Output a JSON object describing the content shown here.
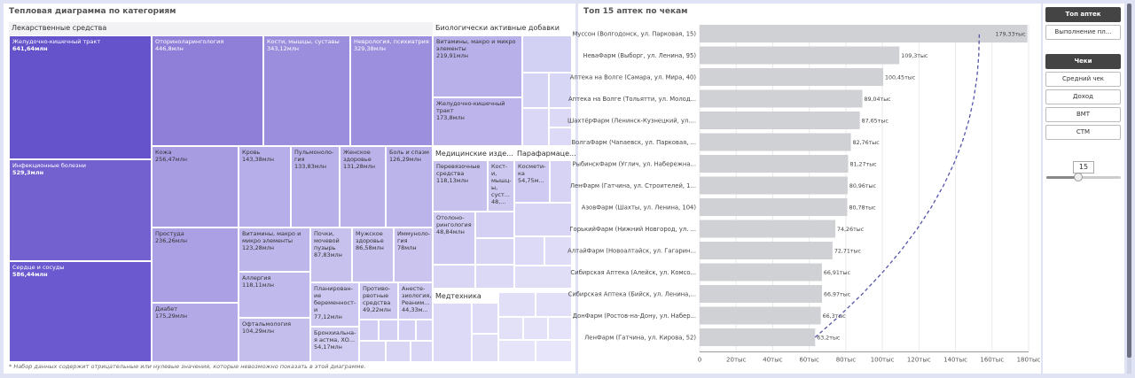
{
  "treemap": {
    "title": "Тепловая диаграмма по категориям",
    "groups": {
      "drugs": "Лекарственные средства",
      "bio": "Биологически активные добавки",
      "med": "Медицинские изде...",
      "para": "Парафармаце...",
      "tech": "Медтехника"
    },
    "cells": {
      "gi": {
        "label": "Желудочно-кишечный тракт",
        "value": "641,64млн"
      },
      "inf": {
        "label": "Инфекционные болезни",
        "value": "529,3млн"
      },
      "heart": {
        "label": "Сердце и сосуды",
        "value": "586,44млн"
      },
      "ent": {
        "label": "Оториноларингология",
        "value": "446,8млн"
      },
      "bones": {
        "label": "Кости, мышцы, суставы",
        "value": "343,12млн"
      },
      "neuro": {
        "label": "Неврология, психиатрия",
        "value": "329,38млн"
      },
      "skin": {
        "label": "Кожа",
        "value": "256,47млн"
      },
      "blood": {
        "label": "Кровь",
        "value": "143,38млн"
      },
      "pulmo": {
        "label": "Пульмоноло-гия",
        "value": "133,83млн"
      },
      "women": {
        "label": "Женское здоровье",
        "value": "131,28млн"
      },
      "pain": {
        "label": "Боль и спазм",
        "value": "126,29млн"
      },
      "cold": {
        "label": "Простуда",
        "value": "236,26млн"
      },
      "vit": {
        "label": "Витамины, макро и микро элементы",
        "value": "123,28млн"
      },
      "kidney": {
        "label": "Почки, мочевой пузырь",
        "value": "87,83млн"
      },
      "men": {
        "label": "Мужское здоровье",
        "value": "86,58млн"
      },
      "immuno": {
        "label": "Иммуноло-гия",
        "value": "78млн"
      },
      "allergy": {
        "label": "Аллергия",
        "value": "118,11млн"
      },
      "diabetes": {
        "label": "Диабет",
        "value": "175,29млн"
      },
      "plan": {
        "label": "Планирован-ие беременност-и",
        "value": "77,12млн"
      },
      "contra": {
        "label": "Противо-рвотные средства",
        "value": "49,22млн"
      },
      "anest": {
        "label": "Анесте-зиология, Реаним...",
        "value": "44,33м..."
      },
      "ophth": {
        "label": "Офтальмология",
        "value": "104,29млн"
      },
      "asthma": {
        "label": "Бронхиальна-я астма, ХО...",
        "value": "54,17млн"
      },
      "bio_vit": {
        "label": "Витамины, макро и микро элементы",
        "value": "219,91млн"
      },
      "bio_gi": {
        "label": "Желудочно-кишечный тракт",
        "value": "173,8млн"
      },
      "dress": {
        "label": "Перевязочные средства",
        "value": "118,13млн"
      },
      "med_bones": {
        "label": "Кост-и, мышц-ы, суст...",
        "value": "48,..."
      },
      "med_ent": {
        "label": "Отолоно-рингология",
        "value": "48,84млн"
      },
      "cosm": {
        "label": "Космети-ка",
        "value": "54,75м..."
      }
    },
    "note": "* Набор данных содержит отрицательные или нулевые значения, которые невозможно показать в этой диаграмме."
  },
  "top": {
    "title": "Топ 15 аптек по чекам",
    "chart_data": {
      "type": "bar",
      "orientation": "horizontal",
      "categories": [
        "Муссон (Волгодонск, ул. Парковая, 15)",
        "НеваФарм (Выборг, ул. Ленина, 95)",
        "Аптека на Волге (Самара, ул. Мира, 40)",
        "Аптека на Волге (Тольятти, ул. Молод...",
        "ШахтёрФарм (Ленинск-Кузнецкий, ул....",
        "ВолгаФарм (Чапаевск, ул. Парковая, ...",
        "РыбинскФарм (Углич, ул. Набережна...",
        "ЛенФарм (Гатчина, ул. Строителей, 1...",
        "АзовФарм (Шахты, ул. Ленина, 104)",
        "ГорькийФарм (Нижний Новгород, ул. ...",
        "АлтайФарм (Новоалтайск, ул. Гагарин...",
        "Сибирская Аптека (Алейск, ул. Комсо...",
        "Сибирская Аптека (Бийск, ул. Ленина,...",
        "ДонФарм (Ростов-на-Дону, ул. Набер...",
        "ЛенФарм (Гатчина, ул. Кирова, 52)"
      ],
      "values": [
        179.33,
        109.3,
        100.45,
        89.04,
        87.65,
        82.76,
        81.27,
        80.96,
        80.78,
        74.26,
        72.71,
        66.91,
        66.97,
        66.3,
        63.2
      ],
      "data_labels": [
        "179,33тыс",
        "109,3тыс",
        "100,45тыс",
        "89,04тыс",
        "87,65тыс",
        "82,76тыс",
        "81,27тыс",
        "80,96тыс",
        "80,78тыс",
        "74,26тыс",
        "72,71тыс",
        "66,91тыс",
        "66,97тыс",
        "66,3тыс",
        "63,2тыс"
      ],
      "ticks": [
        0,
        20,
        40,
        60,
        80,
        100,
        120,
        140,
        160,
        180
      ],
      "tick_labels": [
        "0",
        "20тыс",
        "40тыс",
        "60тыс",
        "80тыс",
        "100тыс",
        "120тыс",
        "140тыс",
        "160тыс",
        "180тыс"
      ],
      "xlim": [
        0,
        180
      ],
      "bar_color": "#d0d1d5",
      "trend_color": "#5555aa"
    }
  },
  "controls": {
    "top_buttons": [
      "Топ аптек",
      "Выполнение пл..."
    ],
    "metric_buttons": [
      "Чеки",
      "Средний чек",
      "Доход",
      "ВМТ",
      "СТМ"
    ],
    "slider_value": "15",
    "slider_fraction": 0.43
  }
}
